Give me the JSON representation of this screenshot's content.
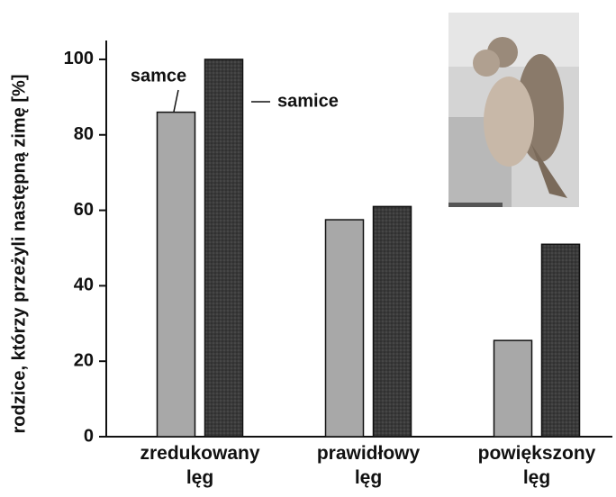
{
  "chart_data": {
    "type": "bar",
    "y_label": "rodzice, którzy przeżyli następną zimę [%]",
    "categories": [
      "zredukowany lęg",
      "prawidłowy lęg",
      "powiększony lęg"
    ],
    "series": [
      {
        "name": "samce",
        "color": "#a8a8a8",
        "values": [
          86,
          57.5,
          25.5
        ]
      },
      {
        "name": "samice",
        "color": "#383838",
        "values": [
          100,
          61,
          51
        ]
      }
    ],
    "ylim": [
      0,
      105
    ],
    "yticks": [
      0,
      20,
      40,
      60,
      80,
      100
    ]
  }
}
